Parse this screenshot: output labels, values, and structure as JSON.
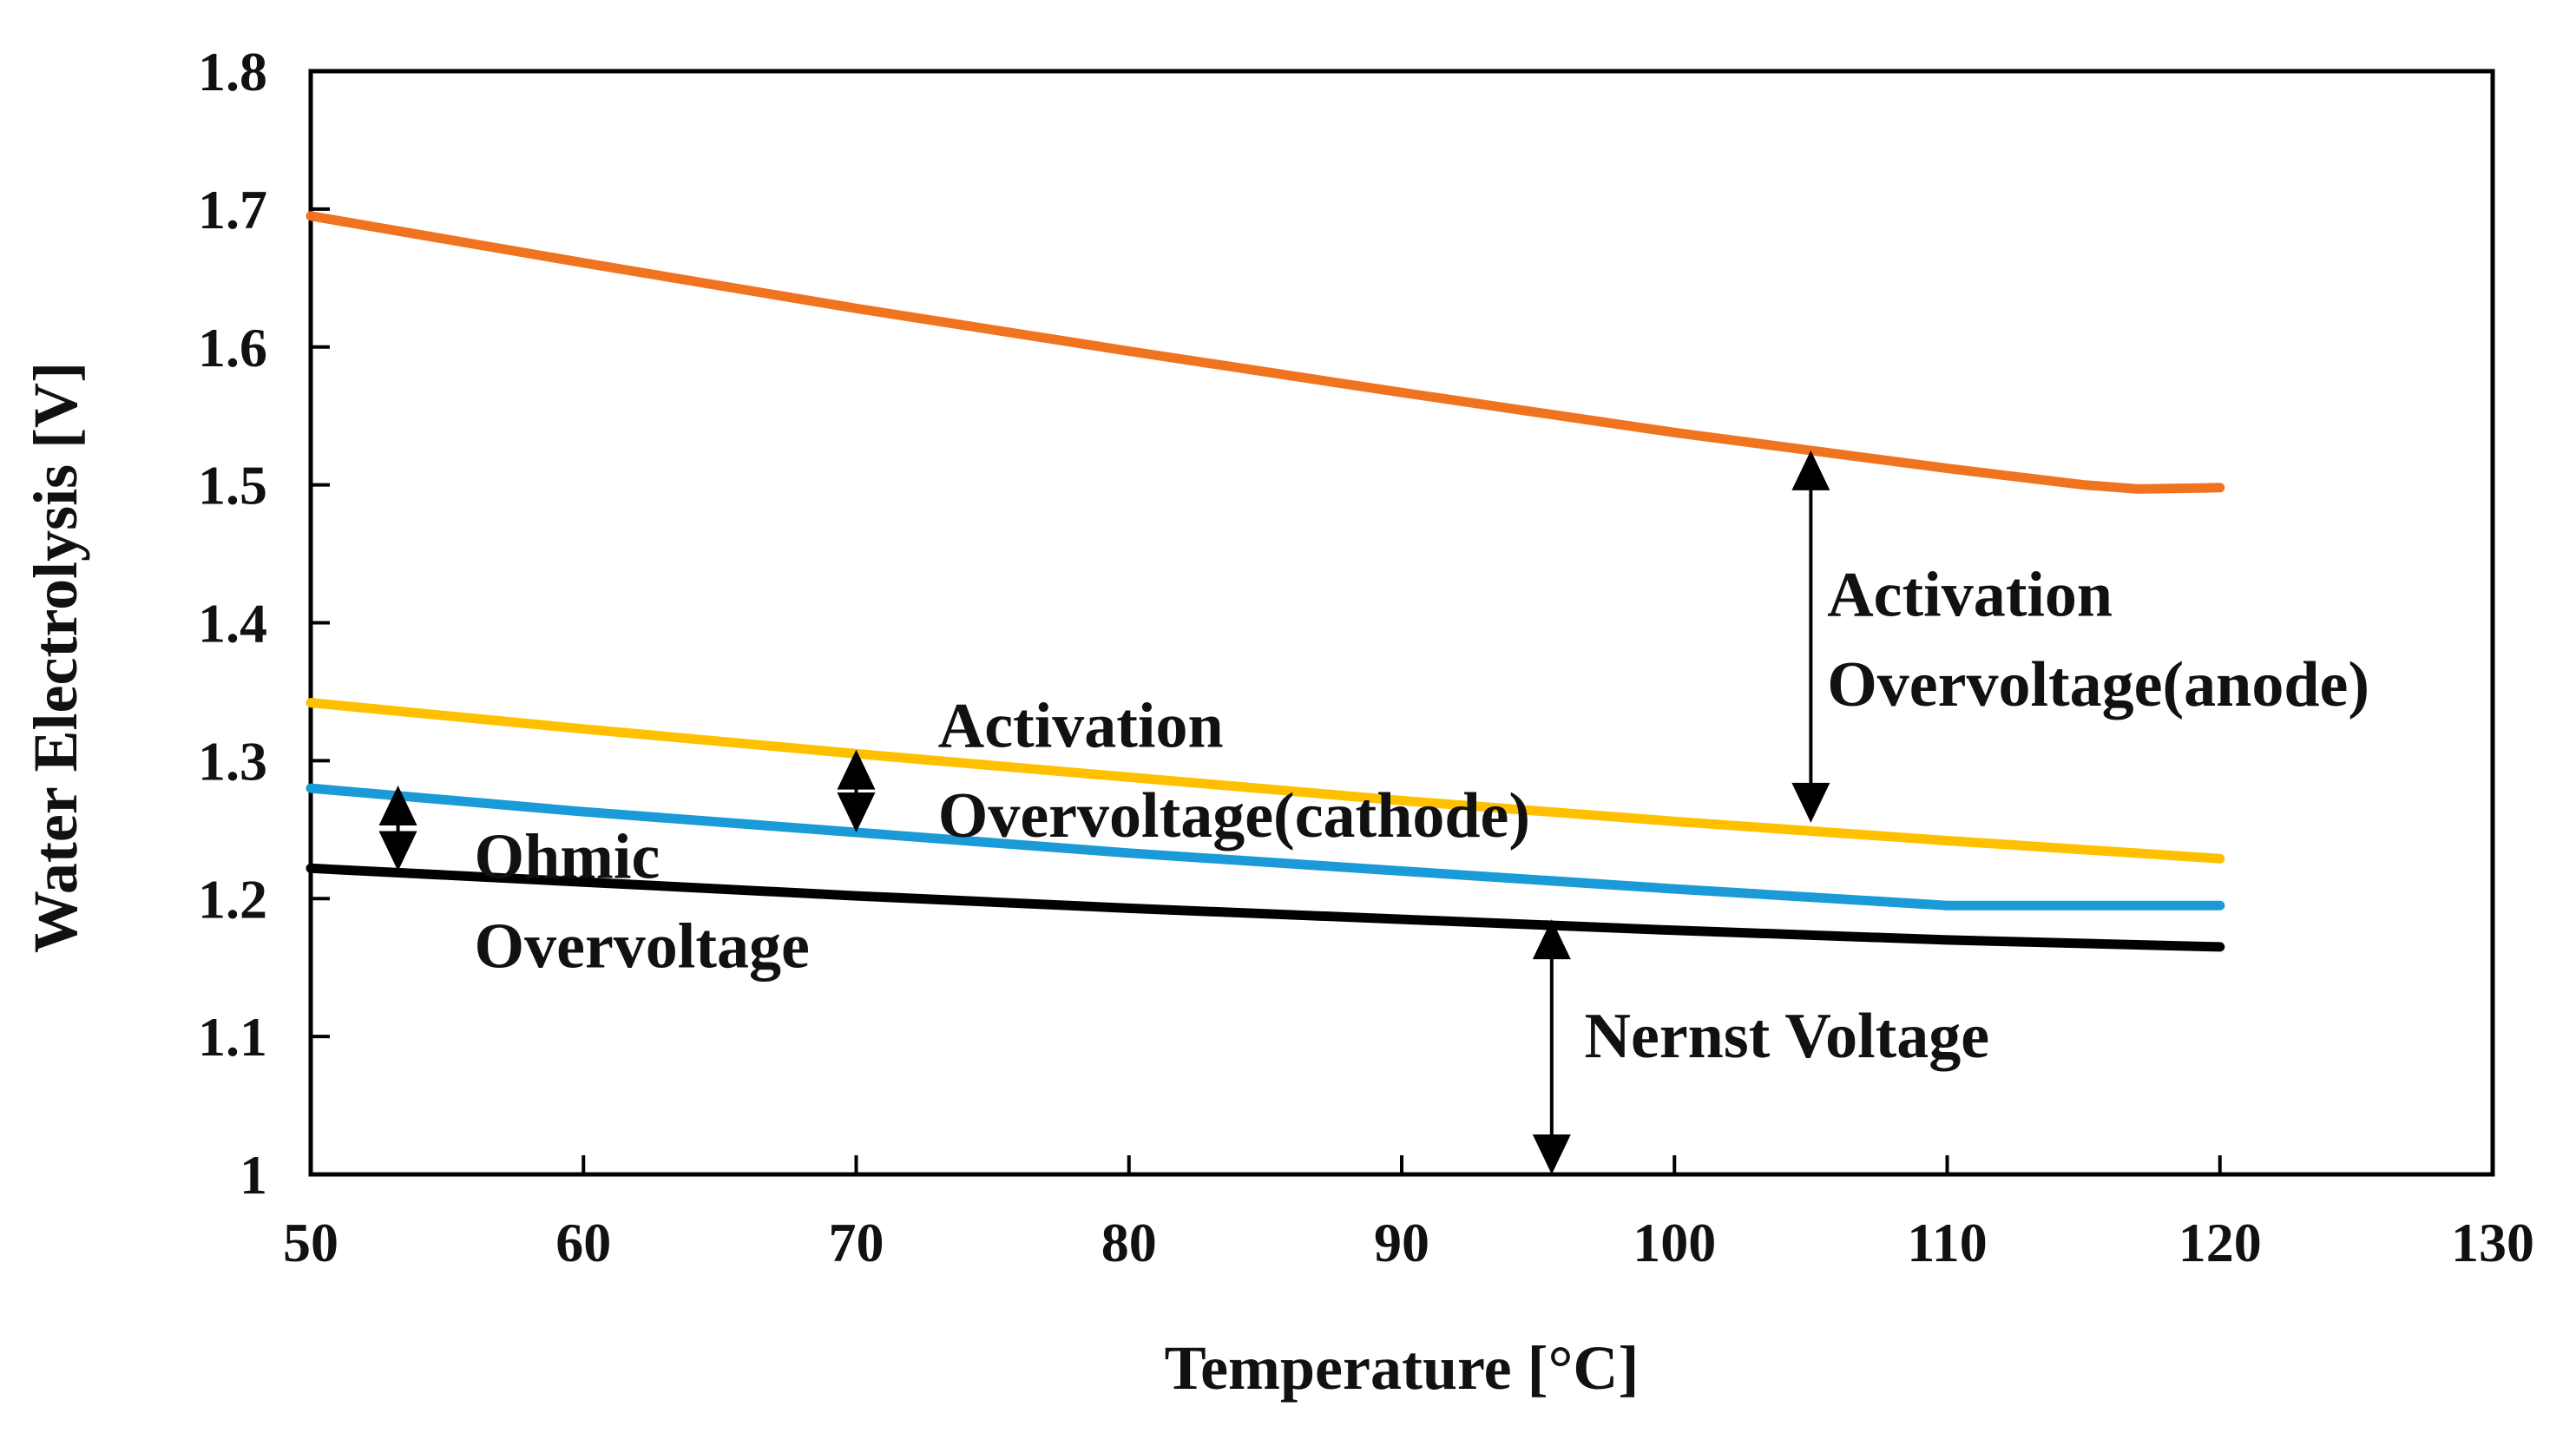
{
  "chart_data": {
    "type": "line",
    "title": "",
    "xlabel": "Temperature [°C]",
    "ylabel": "Water Electrolysis [V]",
    "xlim": [
      50,
      130
    ],
    "ylim": [
      1.0,
      1.8
    ],
    "xticks": [
      50,
      60,
      70,
      80,
      90,
      100,
      110,
      120,
      130
    ],
    "yticks": [
      1,
      1.1,
      1.2,
      1.3,
      1.4,
      1.5,
      1.6,
      1.7,
      1.8
    ],
    "ytick_labels": [
      "1",
      "1.1",
      "1.2",
      "1.3",
      "1.4",
      "1.5",
      "1.6",
      "1.7",
      "1.8"
    ],
    "grid": false,
    "series": [
      {
        "name": "Anode activation",
        "color": "#f07420",
        "x": [
          50,
          60,
          70,
          80,
          90,
          100,
          110,
          115,
          117,
          120
        ],
        "y": [
          1.695,
          1.661,
          1.628,
          1.597,
          1.567,
          1.538,
          1.512,
          1.5,
          1.497,
          1.498
        ]
      },
      {
        "name": "Cathode activation",
        "color": "#ffc000",
        "x": [
          50,
          60,
          70,
          80,
          90,
          100,
          110,
          120
        ],
        "y": [
          1.342,
          1.323,
          1.305,
          1.288,
          1.271,
          1.256,
          1.242,
          1.229
        ]
      },
      {
        "name": "Ohmic",
        "color": "#1a9ad6",
        "x": [
          50,
          60,
          70,
          80,
          90,
          100,
          110,
          120
        ],
        "y": [
          1.28,
          1.263,
          1.248,
          1.233,
          1.22,
          1.207,
          1.195,
          1.195
        ]
      },
      {
        "name": "Nernst",
        "color": "#000000",
        "x": [
          50,
          60,
          70,
          80,
          90,
          100,
          110,
          120
        ],
        "y": [
          1.222,
          1.212,
          1.202,
          1.193,
          1.185,
          1.177,
          1.17,
          1.165
        ]
      }
    ],
    "annotations": [
      {
        "id": "anode",
        "lines": [
          "Activation",
          "Overvoltage(anode)"
        ],
        "arrow_x": 105,
        "arrow_y": [
          1.525,
          1.255
        ],
        "text_x": 105.6,
        "text_y": [
          1.405,
          1.34
        ]
      },
      {
        "id": "cathode",
        "lines": [
          "Activation",
          "Overvoltage(cathode)"
        ],
        "arrow_x": 70,
        "arrow_y": [
          1.308,
          1.248
        ],
        "text_x": 73,
        "text_y": [
          1.31,
          1.245
        ]
      },
      {
        "id": "ohmic",
        "lines": [
          "Ohmic",
          "Overvoltage"
        ],
        "arrow_x": 53.2,
        "arrow_y": [
          1.282,
          1.22
        ],
        "text_x": 56,
        "text_y": [
          1.215,
          1.15
        ]
      },
      {
        "id": "nernst",
        "lines": [
          "Nernst Voltage"
        ],
        "arrow_x": 95.5,
        "arrow_y": [
          1.185,
          1.0
        ],
        "text_x": 96.7,
        "text_y": [
          1.085
        ]
      }
    ],
    "arrow_color": "#000000",
    "axis_color": "#000000"
  }
}
